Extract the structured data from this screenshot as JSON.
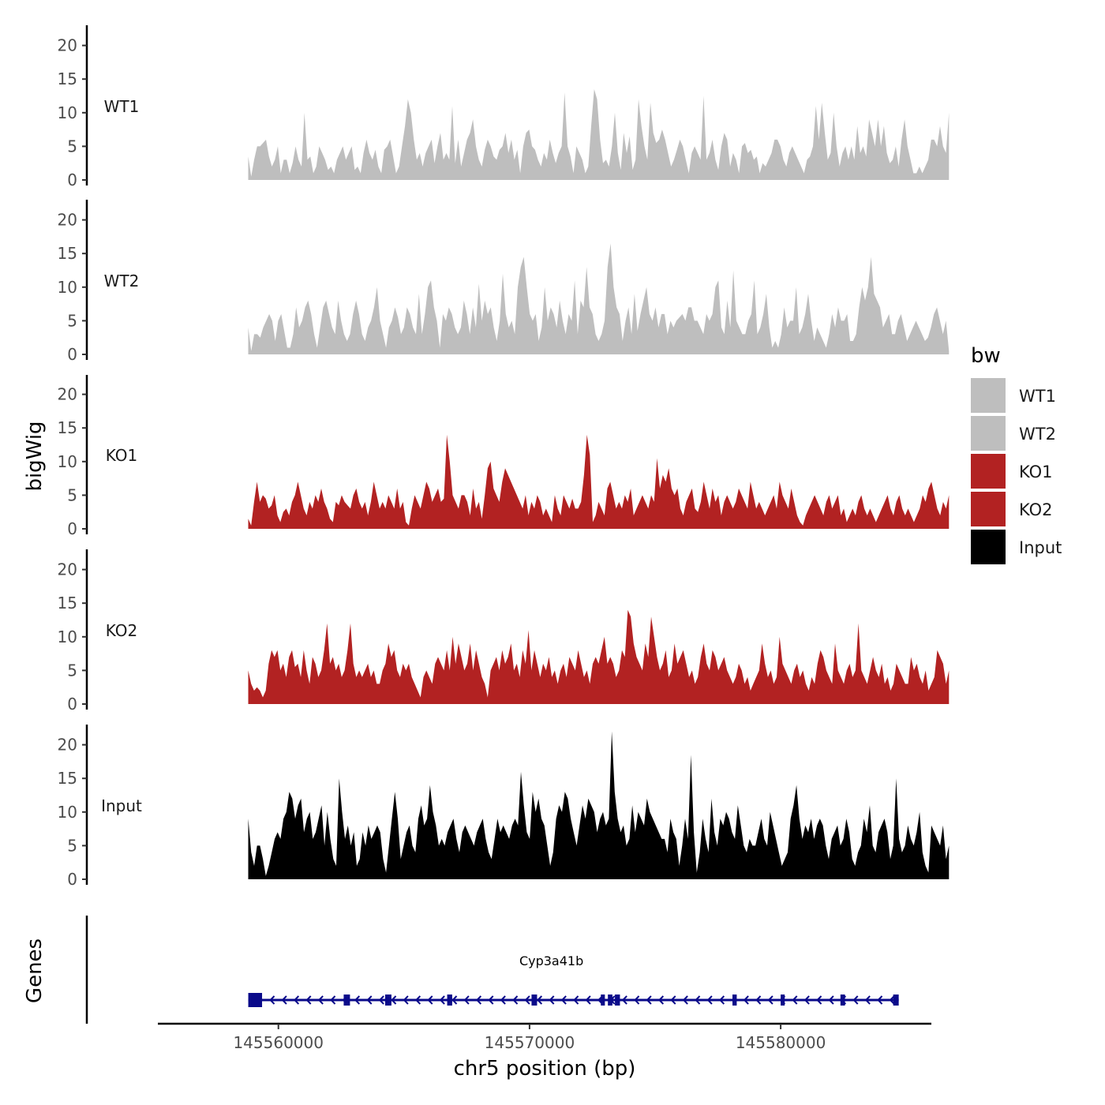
{
  "chart_data": {
    "type": "area",
    "y_axis_label": "bigWig",
    "x_axis_label": "chr5 position (bp)",
    "x_range": [
      145558800,
      145586700
    ],
    "xlim": [
      145555200,
      145586000
    ],
    "x_ticks": [
      {
        "value": 145560000,
        "label": "145560000"
      },
      {
        "value": 145570000,
        "label": "145570000"
      },
      {
        "value": 145580000,
        "label": "145580000"
      }
    ],
    "ylim": [
      0,
      22.5
    ],
    "y_ticks": [
      {
        "value": 0,
        "label": "0"
      },
      {
        "value": 5,
        "label": "5"
      },
      {
        "value": 10,
        "label": "10"
      },
      {
        "value": 15,
        "label": "15"
      },
      {
        "value": 20,
        "label": "20"
      }
    ],
    "tracks": [
      {
        "name": "WT1",
        "color": "#bebebe",
        "values": [
          3.5,
          0.5,
          3,
          5,
          5,
          5.5,
          6,
          3.5,
          2,
          3,
          5,
          1,
          3,
          3,
          1,
          2.5,
          5,
          3,
          2,
          10,
          3,
          3.5,
          1,
          2,
          5,
          4,
          3,
          1.5,
          2,
          1,
          3,
          4,
          5,
          3,
          4,
          5,
          1.5,
          2,
          1,
          4,
          6,
          4,
          3,
          4.5,
          2,
          1,
          4.5,
          5,
          6,
          3.5,
          1,
          2,
          5,
          8,
          12,
          10,
          6,
          3,
          4,
          2,
          4,
          5,
          6,
          2.5,
          5,
          7,
          3,
          4,
          3,
          11,
          2.5,
          6,
          2,
          4,
          6,
          7,
          9,
          5,
          3,
          2,
          4.5,
          6,
          5,
          3.5,
          3,
          4.5,
          5,
          7,
          4,
          6,
          3,
          4.5,
          1,
          5,
          7,
          7.5,
          5,
          4.5,
          3,
          2,
          4,
          3,
          6,
          4,
          2.5,
          4,
          5,
          13,
          5,
          3.5,
          1,
          5,
          4,
          3,
          1,
          2,
          8,
          13.5,
          12,
          6,
          2.5,
          3,
          2,
          5,
          10,
          4,
          1.5,
          7,
          4,
          6.5,
          1.5,
          3,
          12,
          8,
          5,
          3,
          11.5,
          7,
          5.5,
          6,
          7.5,
          6,
          4,
          2,
          3,
          4.5,
          6,
          5,
          3,
          1,
          4,
          5,
          4,
          3,
          12.5,
          3,
          4,
          6,
          3,
          1.5,
          5,
          7,
          6,
          2,
          4,
          3,
          1,
          5,
          5.5,
          4,
          4.5,
          3,
          3.5,
          1,
          2.5,
          2,
          3,
          4,
          6,
          6,
          5,
          3,
          2,
          4,
          5,
          4,
          3,
          2,
          1,
          3,
          3.5,
          5,
          11,
          6,
          11.5,
          7,
          3,
          4,
          10,
          5,
          2,
          4,
          5,
          3,
          5,
          3,
          8,
          4,
          5,
          3.5,
          9,
          7,
          5,
          9,
          5,
          8,
          4,
          2.5,
          3,
          5,
          2,
          6,
          9,
          5,
          3,
          1,
          1,
          2,
          1,
          2,
          3,
          6,
          6,
          5,
          8,
          5,
          4,
          10
        ]
      },
      {
        "name": "WT2",
        "color": "#bebebe",
        "values": [
          4,
          0.5,
          3,
          3,
          2.5,
          4,
          5,
          6,
          5,
          2,
          5,
          6,
          3.5,
          1,
          1,
          3,
          7,
          4,
          5,
          7,
          8,
          6,
          3,
          1,
          4,
          7,
          8,
          6,
          4,
          3,
          8,
          5,
          3,
          2,
          3,
          6,
          8,
          6,
          3,
          2,
          4,
          5,
          7,
          10,
          5,
          3,
          1,
          4,
          5,
          7,
          5.5,
          3,
          4,
          7,
          6,
          4,
          3,
          9,
          3,
          6,
          10,
          11,
          7,
          5,
          1,
          6,
          5,
          7,
          6,
          4,
          3,
          4,
          8,
          6,
          3,
          7,
          4,
          10.5,
          5,
          8,
          6,
          7,
          4,
          2,
          5,
          12,
          6,
          4,
          5,
          3,
          10,
          13,
          14.5,
          10,
          6,
          5,
          6,
          2,
          4,
          10,
          5,
          7,
          6,
          4,
          8,
          5,
          3,
          6,
          5,
          11,
          3,
          8,
          7,
          13,
          7,
          6,
          3,
          2,
          3,
          5,
          13,
          16.5,
          10,
          7,
          6,
          2,
          5,
          7,
          3,
          9,
          3.5,
          6,
          8,
          10,
          6,
          5,
          7,
          4,
          6,
          6,
          3,
          5,
          4,
          5,
          5.5,
          6,
          5,
          7,
          7,
          5,
          5,
          4,
          3,
          6,
          5,
          6,
          10,
          11,
          4,
          3,
          8,
          4,
          12.5,
          5,
          4,
          3,
          3,
          5,
          6,
          11,
          3,
          4,
          6,
          9,
          4,
          1,
          2,
          1,
          3,
          7,
          4,
          5,
          5,
          10,
          3,
          4,
          6,
          9,
          5,
          2,
          4,
          3,
          2,
          1,
          3,
          6,
          4,
          7,
          5,
          5,
          6,
          2,
          2,
          3,
          7,
          10,
          8,
          10,
          14.5,
          9,
          8,
          7,
          4,
          5,
          6,
          3,
          3,
          5,
          6,
          4,
          2,
          3,
          4,
          5,
          4,
          3,
          2,
          2.5,
          4,
          6,
          7,
          5,
          3,
          5,
          0.5
        ]
      },
      {
        "name": "KO1",
        "color": "#b22222",
        "values": [
          1.5,
          0.5,
          4,
          7,
          4,
          5,
          4.5,
          3,
          3.5,
          5,
          2,
          1,
          2.5,
          3,
          2,
          4,
          5,
          7,
          5,
          3,
          2,
          4,
          3,
          5,
          4,
          6,
          4,
          3,
          1.5,
          1,
          4,
          3.5,
          5,
          4,
          3.5,
          3,
          5,
          6,
          4,
          3,
          4,
          2,
          4,
          7,
          5,
          3,
          4,
          3,
          5,
          4,
          3,
          6,
          3,
          4,
          1,
          0.5,
          3,
          5,
          4,
          3,
          5,
          7,
          6,
          4,
          5,
          6,
          4,
          4.5,
          14,
          10,
          5,
          4,
          3,
          5,
          5,
          4,
          2,
          6,
          3,
          4,
          1.5,
          5,
          9,
          10,
          6,
          5,
          4,
          7,
          9,
          8,
          7,
          6,
          5,
          4,
          3,
          5,
          2,
          4,
          3,
          5,
          4,
          2,
          3,
          2,
          1,
          5,
          3,
          2,
          5,
          4,
          3,
          4.5,
          3,
          3,
          4,
          8,
          14,
          11,
          1,
          2,
          4,
          3,
          2,
          6,
          7,
          5,
          3,
          4,
          3,
          5,
          4,
          6,
          2,
          3,
          4,
          5,
          4,
          3,
          5,
          4,
          10.5,
          6,
          8,
          7,
          9,
          6,
          5,
          6,
          3,
          2,
          4,
          5,
          6,
          3,
          2.5,
          4,
          7,
          5,
          3,
          6,
          4,
          5,
          2,
          4,
          5,
          4,
          3,
          4,
          6,
          5,
          4,
          3,
          7,
          5,
          3,
          4,
          3,
          2,
          3,
          4,
          5,
          3,
          7,
          5,
          4,
          3,
          6,
          4,
          2,
          1,
          0.5,
          2,
          3,
          4,
          5,
          4,
          3,
          2,
          4,
          5,
          3,
          4,
          5,
          2,
          3,
          1,
          2,
          3,
          2,
          4,
          5,
          3,
          2,
          3,
          2,
          1,
          2,
          3,
          4,
          5,
          3,
          2,
          4,
          5,
          3,
          2,
          3,
          2,
          1,
          2,
          3,
          5,
          4,
          6,
          7,
          5,
          3,
          2,
          4,
          3,
          5
        ]
      },
      {
        "name": "KO2",
        "color": "#b22222",
        "values": [
          5,
          3,
          2,
          2.5,
          2,
          1,
          2,
          6,
          8,
          7,
          8,
          5,
          6,
          4,
          7,
          8,
          5.5,
          6,
          4,
          8,
          5,
          3,
          7,
          6,
          4,
          5,
          8,
          12,
          6,
          7,
          5,
          6,
          4,
          5,
          8,
          12,
          6,
          4,
          5,
          4,
          5,
          6,
          4,
          5,
          3,
          3,
          5,
          6,
          9,
          7,
          8,
          5,
          4,
          6,
          5,
          6,
          4,
          3,
          2,
          1,
          4,
          5,
          4,
          3,
          6,
          7,
          6,
          5,
          8,
          5,
          10,
          6,
          9,
          7,
          5,
          6,
          9,
          5,
          8,
          6,
          4,
          3,
          1,
          5,
          6,
          7,
          5,
          8,
          6,
          7,
          9,
          5,
          6,
          4,
          8,
          6,
          11,
          5,
          8,
          6,
          4,
          6,
          5,
          7,
          4,
          5,
          3,
          5,
          6,
          4,
          7,
          6,
          5,
          8,
          6,
          4,
          5,
          3,
          6,
          7,
          6,
          8,
          10,
          6,
          7,
          6,
          4,
          5,
          8,
          7,
          14,
          13,
          9,
          7,
          6,
          5,
          9,
          7,
          13,
          10,
          7,
          5,
          6,
          8,
          4,
          5,
          9,
          6,
          7,
          8,
          6,
          4,
          5,
          3,
          4,
          7,
          9,
          6,
          5,
          8,
          7,
          5,
          6,
          7,
          5,
          4,
          3,
          4,
          6,
          5,
          3,
          4,
          2,
          3,
          4,
          5,
          9,
          6,
          4,
          5,
          3,
          4,
          10,
          6,
          5,
          4,
          3,
          5,
          6,
          4,
          5,
          3,
          2,
          4,
          3,
          6,
          8,
          7,
          5,
          4,
          3,
          9,
          5,
          4,
          3,
          5,
          6,
          4,
          5,
          12,
          5,
          4,
          3,
          5,
          7,
          5,
          4,
          6,
          3,
          4,
          2,
          3,
          6,
          5,
          4,
          3,
          3,
          7,
          5,
          6,
          4,
          3,
          5,
          2,
          3,
          4,
          8,
          7,
          6,
          3,
          5
        ]
      },
      {
        "name": "Input",
        "color": "#000000",
        "values": [
          9,
          4,
          2,
          5,
          5,
          3,
          0.5,
          2,
          4,
          6,
          7,
          6,
          9,
          10,
          13,
          12,
          9,
          11,
          12,
          7,
          9,
          10,
          6,
          7,
          9,
          11,
          5,
          10,
          6,
          3,
          2,
          15,
          10,
          6,
          8,
          5,
          7,
          2,
          3,
          7,
          5,
          8,
          6,
          7,
          8,
          7,
          3,
          1,
          5,
          9,
          13,
          9,
          3,
          5,
          7,
          8,
          5,
          4,
          9,
          11,
          8,
          9,
          14,
          10,
          8,
          5,
          6,
          5,
          7,
          8,
          9,
          6,
          4,
          7,
          8,
          7,
          6,
          5,
          7,
          8,
          9,
          6,
          4,
          3,
          6,
          9,
          7,
          8,
          7,
          6,
          8,
          9,
          8,
          16,
          11,
          7,
          6,
          13,
          10,
          12,
          9,
          8,
          5,
          2,
          4,
          9,
          11,
          10,
          13,
          12,
          9,
          7,
          5,
          8,
          11,
          9,
          12,
          11,
          10,
          7,
          9,
          10,
          8,
          9,
          22,
          13,
          9,
          7,
          8,
          5,
          6,
          11,
          7,
          10,
          9,
          8,
          12,
          10,
          9,
          8,
          7,
          6,
          6,
          4,
          9,
          7,
          6,
          2,
          5,
          9,
          6,
          18.5,
          7,
          1,
          4,
          9,
          6,
          4,
          12,
          7,
          5,
          9,
          8,
          10,
          9,
          7,
          6,
          11,
          8,
          5,
          4,
          6,
          5,
          5,
          7,
          9,
          6,
          5,
          10,
          8,
          6,
          4,
          2,
          3,
          4,
          9,
          11,
          14,
          9,
          6,
          8,
          7,
          9,
          6,
          8,
          9,
          8,
          5,
          3,
          6,
          7,
          8,
          5,
          6,
          9,
          7,
          3,
          2,
          4,
          5,
          9,
          7,
          11,
          5,
          4,
          7,
          8,
          9,
          7,
          3,
          5,
          15,
          6,
          4,
          5,
          8,
          6,
          5,
          7,
          10,
          4,
          2,
          1,
          8,
          7,
          6,
          5,
          8,
          3,
          5
        ]
      }
    ],
    "legend": {
      "title": "bw",
      "entries": [
        {
          "label": "WT1",
          "color": "#bebebe"
        },
        {
          "label": "WT2",
          "color": "#bebebe"
        },
        {
          "label": "KO1",
          "color": "#b22222"
        },
        {
          "label": "KO2",
          "color": "#b22222"
        },
        {
          "label": "Input",
          "color": "#000000"
        }
      ]
    },
    "genes": {
      "track_label": "Genes",
      "name": "Cyp3a41b",
      "strand": "-",
      "color": "#0a0a8a",
      "start": 145558800,
      "end": 145584700,
      "exons": [
        [
          145558800,
          145559350
        ],
        [
          145562600,
          145562850
        ],
        [
          145564250,
          145564500
        ],
        [
          145566720,
          145566920
        ],
        [
          145570080,
          145570300
        ],
        [
          145572840,
          145573000
        ],
        [
          145573120,
          145573300
        ],
        [
          145573400,
          145573600
        ],
        [
          145578080,
          145578250
        ],
        [
          145580000,
          145580160
        ],
        [
          145582380,
          145582560
        ],
        [
          145584480,
          145584700
        ]
      ]
    }
  }
}
